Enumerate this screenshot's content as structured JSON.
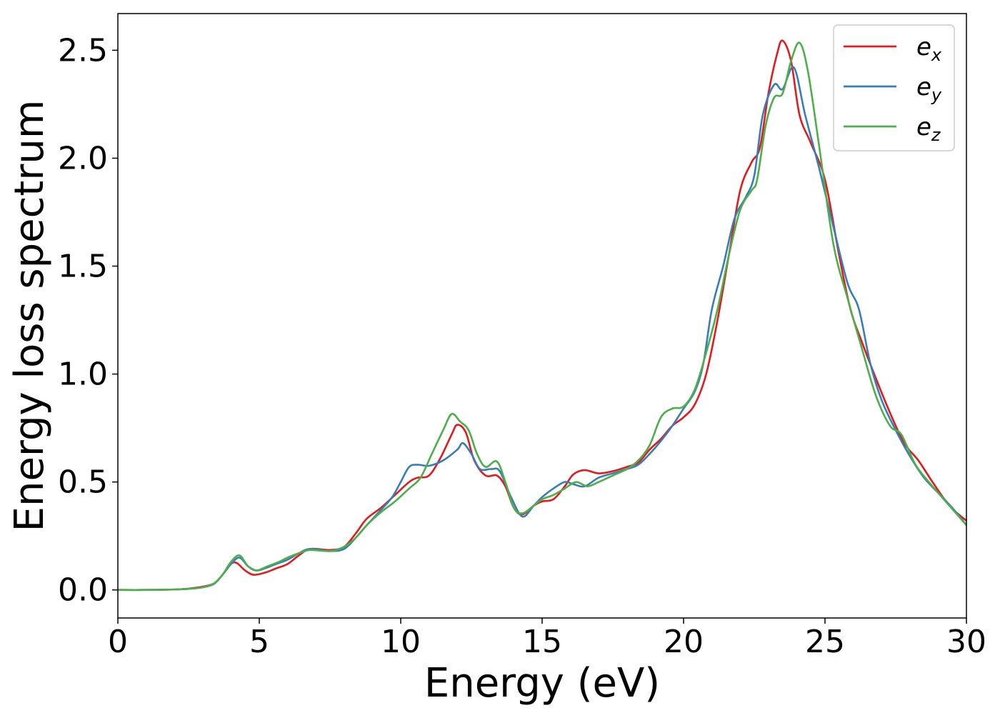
{
  "chart_data": {
    "type": "line",
    "xlabel": "Energy (eV)",
    "ylabel": "Energy loss spectrum",
    "xlim": [
      0,
      30
    ],
    "ylim": [
      -0.13,
      2.67
    ],
    "xticks": [
      0,
      5,
      10,
      15,
      20,
      25,
      30
    ],
    "xtick_labels": [
      "0",
      "5",
      "10",
      "15",
      "20",
      "25",
      "30"
    ],
    "yticks": [
      0.0,
      0.5,
      1.0,
      1.5,
      2.0,
      2.5
    ],
    "ytick_labels": [
      "0.0",
      "0.5",
      "1.0",
      "1.5",
      "2.0",
      "2.5"
    ],
    "grid": false,
    "legend_position": "top-right",
    "series": [
      {
        "name": "e_x",
        "label_main": "e",
        "label_sub": "x",
        "color": "#e41a1c",
        "points": [
          [
            0,
            0.0
          ],
          [
            1,
            0.0
          ],
          [
            2,
            0.002
          ],
          [
            2.5,
            0.006
          ],
          [
            3,
            0.015
          ],
          [
            3.4,
            0.03
          ],
          [
            3.7,
            0.07
          ],
          [
            4.0,
            0.12
          ],
          [
            4.2,
            0.125
          ],
          [
            4.5,
            0.09
          ],
          [
            4.8,
            0.07
          ],
          [
            5.2,
            0.08
          ],
          [
            5.6,
            0.1
          ],
          [
            6.0,
            0.12
          ],
          [
            6.4,
            0.16
          ],
          [
            6.8,
            0.19
          ],
          [
            7.5,
            0.185
          ],
          [
            8.0,
            0.2
          ],
          [
            8.4,
            0.26
          ],
          [
            8.8,
            0.33
          ],
          [
            9.3,
            0.38
          ],
          [
            9.8,
            0.44
          ],
          [
            10.3,
            0.5
          ],
          [
            10.6,
            0.52
          ],
          [
            11.0,
            0.53
          ],
          [
            11.4,
            0.61
          ],
          [
            11.8,
            0.72
          ],
          [
            12.0,
            0.765
          ],
          [
            12.3,
            0.73
          ],
          [
            12.6,
            0.6
          ],
          [
            13.0,
            0.53
          ],
          [
            13.4,
            0.53
          ],
          [
            13.7,
            0.48
          ],
          [
            14.0,
            0.38
          ],
          [
            14.3,
            0.35
          ],
          [
            14.7,
            0.39
          ],
          [
            15.0,
            0.41
          ],
          [
            15.4,
            0.42
          ],
          [
            15.8,
            0.48
          ],
          [
            16.1,
            0.535
          ],
          [
            16.5,
            0.555
          ],
          [
            17.0,
            0.54
          ],
          [
            17.5,
            0.55
          ],
          [
            18.0,
            0.57
          ],
          [
            18.4,
            0.59
          ],
          [
            18.8,
            0.65
          ],
          [
            19.2,
            0.7
          ],
          [
            19.6,
            0.76
          ],
          [
            20.0,
            0.8
          ],
          [
            20.4,
            0.86
          ],
          [
            20.8,
            1.0
          ],
          [
            21.2,
            1.25
          ],
          [
            21.6,
            1.55
          ],
          [
            22.0,
            1.85
          ],
          [
            22.4,
            1.98
          ],
          [
            22.7,
            2.05
          ],
          [
            23.0,
            2.3
          ],
          [
            23.3,
            2.48
          ],
          [
            23.5,
            2.545
          ],
          [
            23.8,
            2.45
          ],
          [
            24.1,
            2.2
          ],
          [
            24.5,
            2.07
          ],
          [
            25.0,
            1.9
          ],
          [
            25.5,
            1.55
          ],
          [
            25.9,
            1.3
          ],
          [
            26.3,
            1.15
          ],
          [
            26.8,
            0.98
          ],
          [
            27.3,
            0.82
          ],
          [
            27.8,
            0.68
          ],
          [
            28.3,
            0.6
          ],
          [
            28.8,
            0.5
          ],
          [
            29.4,
            0.39
          ],
          [
            30.0,
            0.32
          ]
        ]
      },
      {
        "name": "e_y",
        "label_main": "e",
        "label_sub": "y",
        "color": "#377eb8",
        "points": [
          [
            0,
            0.0
          ],
          [
            1,
            0.0
          ],
          [
            2,
            0.002
          ],
          [
            2.5,
            0.005
          ],
          [
            3,
            0.012
          ],
          [
            3.4,
            0.028
          ],
          [
            3.7,
            0.07
          ],
          [
            4.0,
            0.12
          ],
          [
            4.3,
            0.15
          ],
          [
            4.6,
            0.11
          ],
          [
            4.9,
            0.09
          ],
          [
            5.2,
            0.1
          ],
          [
            5.6,
            0.12
          ],
          [
            6.0,
            0.14
          ],
          [
            6.4,
            0.17
          ],
          [
            6.8,
            0.19
          ],
          [
            7.5,
            0.18
          ],
          [
            8.0,
            0.19
          ],
          [
            8.4,
            0.24
          ],
          [
            8.8,
            0.3
          ],
          [
            9.3,
            0.37
          ],
          [
            9.7,
            0.43
          ],
          [
            10.0,
            0.5
          ],
          [
            10.3,
            0.57
          ],
          [
            10.6,
            0.58
          ],
          [
            11.0,
            0.575
          ],
          [
            11.5,
            0.6
          ],
          [
            12.0,
            0.65
          ],
          [
            12.2,
            0.68
          ],
          [
            12.5,
            0.63
          ],
          [
            12.8,
            0.56
          ],
          [
            13.2,
            0.56
          ],
          [
            13.5,
            0.55
          ],
          [
            13.9,
            0.43
          ],
          [
            14.3,
            0.34
          ],
          [
            14.7,
            0.39
          ],
          [
            15.0,
            0.43
          ],
          [
            15.4,
            0.47
          ],
          [
            15.8,
            0.5
          ],
          [
            16.1,
            0.49
          ],
          [
            16.5,
            0.48
          ],
          [
            17.0,
            0.52
          ],
          [
            17.5,
            0.54
          ],
          [
            18.0,
            0.56
          ],
          [
            18.4,
            0.58
          ],
          [
            18.8,
            0.63
          ],
          [
            19.2,
            0.69
          ],
          [
            19.6,
            0.76
          ],
          [
            20.0,
            0.84
          ],
          [
            20.4,
            0.92
          ],
          [
            20.7,
            1.05
          ],
          [
            21.0,
            1.3
          ],
          [
            21.4,
            1.5
          ],
          [
            21.8,
            1.72
          ],
          [
            22.2,
            1.82
          ],
          [
            22.5,
            1.92
          ],
          [
            22.8,
            2.2
          ],
          [
            23.2,
            2.34
          ],
          [
            23.5,
            2.32
          ],
          [
            23.9,
            2.42
          ],
          [
            24.3,
            2.2
          ],
          [
            24.8,
            1.95
          ],
          [
            25.3,
            1.68
          ],
          [
            25.8,
            1.42
          ],
          [
            26.2,
            1.3
          ],
          [
            26.6,
            1.05
          ],
          [
            27.0,
            0.88
          ],
          [
            27.5,
            0.74
          ],
          [
            28.0,
            0.62
          ],
          [
            28.5,
            0.52
          ],
          [
            29.0,
            0.45
          ],
          [
            29.5,
            0.38
          ],
          [
            30.0,
            0.3
          ]
        ]
      },
      {
        "name": "e_z",
        "label_main": "e",
        "label_sub": "z",
        "color": "#4daf4a",
        "points": [
          [
            0,
            0.0
          ],
          [
            1,
            0.0
          ],
          [
            2,
            0.002
          ],
          [
            2.5,
            0.005
          ],
          [
            3,
            0.012
          ],
          [
            3.4,
            0.03
          ],
          [
            3.7,
            0.07
          ],
          [
            4.0,
            0.13
          ],
          [
            4.3,
            0.16
          ],
          [
            4.6,
            0.11
          ],
          [
            4.9,
            0.09
          ],
          [
            5.3,
            0.11
          ],
          [
            5.7,
            0.13
          ],
          [
            6.0,
            0.15
          ],
          [
            6.4,
            0.17
          ],
          [
            6.8,
            0.185
          ],
          [
            7.5,
            0.18
          ],
          [
            8.0,
            0.2
          ],
          [
            8.4,
            0.24
          ],
          [
            8.8,
            0.3
          ],
          [
            9.3,
            0.36
          ],
          [
            9.8,
            0.41
          ],
          [
            10.3,
            0.47
          ],
          [
            10.7,
            0.52
          ],
          [
            11.1,
            0.63
          ],
          [
            11.5,
            0.74
          ],
          [
            11.8,
            0.815
          ],
          [
            12.1,
            0.78
          ],
          [
            12.4,
            0.74
          ],
          [
            12.7,
            0.63
          ],
          [
            13.0,
            0.57
          ],
          [
            13.4,
            0.595
          ],
          [
            13.7,
            0.5
          ],
          [
            14.0,
            0.38
          ],
          [
            14.3,
            0.355
          ],
          [
            14.7,
            0.39
          ],
          [
            15.0,
            0.42
          ],
          [
            15.4,
            0.44
          ],
          [
            15.8,
            0.47
          ],
          [
            16.2,
            0.5
          ],
          [
            16.6,
            0.48
          ],
          [
            17.0,
            0.5
          ],
          [
            17.5,
            0.53
          ],
          [
            18.0,
            0.56
          ],
          [
            18.4,
            0.6
          ],
          [
            18.8,
            0.67
          ],
          [
            19.2,
            0.8
          ],
          [
            19.6,
            0.84
          ],
          [
            20.0,
            0.85
          ],
          [
            20.4,
            0.93
          ],
          [
            20.8,
            1.1
          ],
          [
            21.2,
            1.3
          ],
          [
            21.6,
            1.55
          ],
          [
            22.0,
            1.76
          ],
          [
            22.4,
            1.85
          ],
          [
            22.6,
            1.9
          ],
          [
            22.9,
            2.15
          ],
          [
            23.2,
            2.28
          ],
          [
            23.5,
            2.3
          ],
          [
            23.8,
            2.45
          ],
          [
            24.1,
            2.535
          ],
          [
            24.4,
            2.4
          ],
          [
            24.8,
            2.05
          ],
          [
            25.3,
            1.6
          ],
          [
            25.8,
            1.35
          ],
          [
            26.3,
            1.12
          ],
          [
            26.8,
            0.9
          ],
          [
            27.3,
            0.76
          ],
          [
            27.7,
            0.72
          ],
          [
            28.2,
            0.58
          ],
          [
            28.8,
            0.48
          ],
          [
            29.4,
            0.39
          ],
          [
            30.0,
            0.3
          ]
        ]
      }
    ]
  }
}
